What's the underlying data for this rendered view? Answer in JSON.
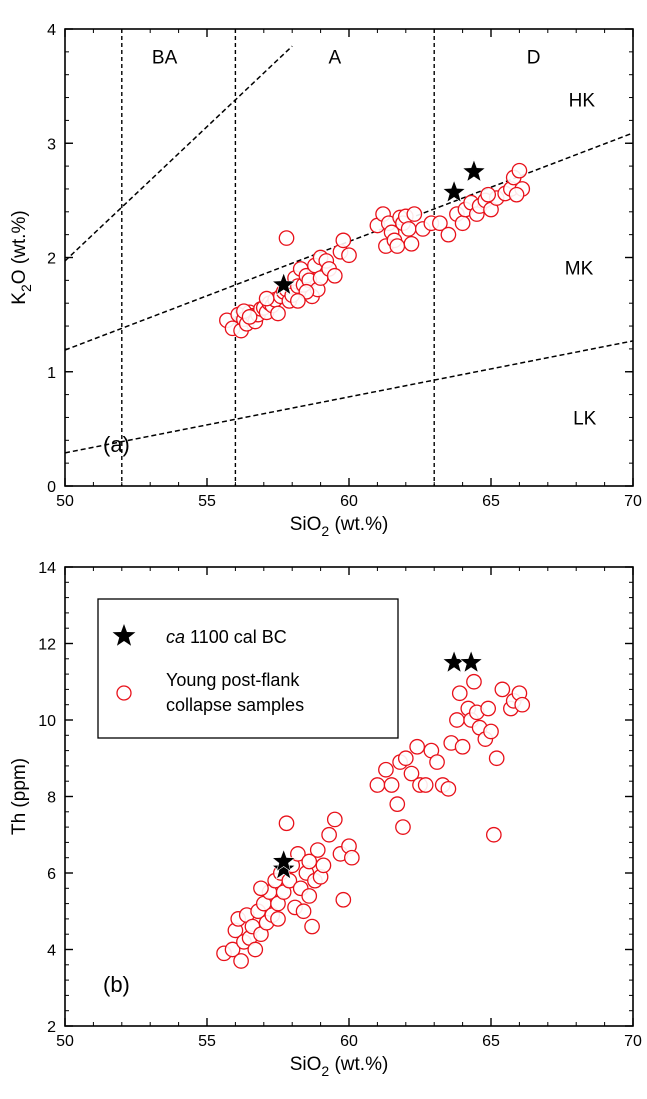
{
  "chart_data": [
    {
      "type": "scatter",
      "panel_label": "(a)",
      "xlabel": {
        "base": "SiO",
        "sub": "2",
        "rest": " (wt.%)"
      },
      "ylabel": {
        "base": "K",
        "sub": "2",
        "rest": "O (wt.%)"
      },
      "xlim": [
        50,
        70
      ],
      "ylim": [
        0,
        4
      ],
      "xticks": [
        "50",
        "55",
        "60",
        "65",
        "70"
      ],
      "yticks": [
        "0",
        "1",
        "2",
        "3",
        "4"
      ],
      "field_labels": {
        "BA": "BA",
        "A": "A",
        "D": "D",
        "HK": "HK",
        "MK": "MK",
        "LK": "LK"
      },
      "boundaries": {
        "vertical_sio2": [
          52,
          56,
          63
        ],
        "hk_mk": [
          [
            50,
            1.97
          ],
          [
            56,
            3.38
          ]
        ],
        "mk": [
          [
            50,
            1.19
          ],
          [
            70,
            3.09
          ]
        ],
        "lk": [
          [
            50,
            0.29
          ],
          [
            70,
            1.27
          ]
        ]
      },
      "series": [
        {
          "legend_ref": 1,
          "marker": "circle",
          "color": "#e8111a",
          "points": [
            [
              55.7,
              1.45
            ],
            [
              55.9,
              1.38
            ],
            [
              56.1,
              1.5
            ],
            [
              56.2,
              1.36
            ],
            [
              56.3,
              1.46
            ],
            [
              56.4,
              1.42
            ],
            [
              56.5,
              1.52
            ],
            [
              56.6,
              1.49
            ],
            [
              56.7,
              1.44
            ],
            [
              56.8,
              1.5
            ],
            [
              56.9,
              1.55
            ],
            [
              57.0,
              1.56
            ],
            [
              57.1,
              1.52
            ],
            [
              57.2,
              1.6
            ],
            [
              57.3,
              1.58
            ],
            [
              57.4,
              1.63
            ],
            [
              57.5,
              1.51
            ],
            [
              57.6,
              1.66
            ],
            [
              57.7,
              1.7
            ],
            [
              57.8,
              2.17
            ],
            [
              57.8,
              1.72
            ],
            [
              57.9,
              1.62
            ],
            [
              58.0,
              1.67
            ],
            [
              58.1,
              1.82
            ],
            [
              58.2,
              1.75
            ],
            [
              58.3,
              1.9
            ],
            [
              58.4,
              1.76
            ],
            [
              58.5,
              1.84
            ],
            [
              58.6,
              1.8
            ],
            [
              58.7,
              1.66
            ],
            [
              58.8,
              1.93
            ],
            [
              58.9,
              1.72
            ],
            [
              59.0,
              1.82
            ],
            [
              59.0,
              2.0
            ],
            [
              59.2,
              1.97
            ],
            [
              59.3,
              1.9
            ],
            [
              59.5,
              1.84
            ],
            [
              59.7,
              2.05
            ],
            [
              59.8,
              2.15
            ],
            [
              60.0,
              2.02
            ],
            [
              56.3,
              1.53
            ],
            [
              56.5,
              1.48
            ],
            [
              57.1,
              1.64
            ],
            [
              58.5,
              1.7
            ],
            [
              58.2,
              1.62
            ],
            [
              61.0,
              2.28
            ],
            [
              61.2,
              2.38
            ],
            [
              61.3,
              2.1
            ],
            [
              61.4,
              2.3
            ],
            [
              61.5,
              2.22
            ],
            [
              61.6,
              2.15
            ],
            [
              61.7,
              2.1
            ],
            [
              61.8,
              2.35
            ],
            [
              61.9,
              2.3
            ],
            [
              62.0,
              2.36
            ],
            [
              62.1,
              2.25
            ],
            [
              62.2,
              2.12
            ],
            [
              62.3,
              2.38
            ],
            [
              62.6,
              2.25
            ],
            [
              62.9,
              2.3
            ],
            [
              63.2,
              2.3
            ],
            [
              63.5,
              2.2
            ],
            [
              63.8,
              2.38
            ],
            [
              64.0,
              2.3
            ],
            [
              64.1,
              2.42
            ],
            [
              64.3,
              2.48
            ],
            [
              64.5,
              2.38
            ],
            [
              64.6,
              2.45
            ],
            [
              64.8,
              2.5
            ],
            [
              65.0,
              2.42
            ],
            [
              65.2,
              2.52
            ],
            [
              65.5,
              2.56
            ],
            [
              65.7,
              2.6
            ],
            [
              65.8,
              2.7
            ],
            [
              66.0,
              2.76
            ],
            [
              66.1,
              2.6
            ],
            [
              65.9,
              2.55
            ],
            [
              64.9,
              2.55
            ]
          ]
        },
        {
          "legend_ref": 0,
          "marker": "star",
          "color": "#000000",
          "points": [
            [
              57.7,
              1.76
            ],
            [
              63.7,
              2.57
            ],
            [
              64.4,
              2.75
            ]
          ]
        }
      ]
    },
    {
      "type": "scatter",
      "panel_label": "(b)",
      "xlabel": {
        "base": "SiO",
        "sub": "2",
        "rest": " (wt.%)"
      },
      "ylabel": {
        "base": "Th (ppm)",
        "sub": "",
        "rest": ""
      },
      "xlim": [
        50,
        70
      ],
      "ylim": [
        2,
        14
      ],
      "xticks": [
        "50",
        "55",
        "60",
        "65",
        "70"
      ],
      "yticks": [
        "2",
        "4",
        "6",
        "8",
        "10",
        "12",
        "14"
      ],
      "legend": {
        "position": "top-left",
        "entries": [
          {
            "prefix_italic": "ca",
            "text": " 1100 cal BC",
            "marker": "star"
          },
          {
            "line1": "Young post-flank",
            "line2": "collapse samples",
            "marker": "circle"
          }
        ]
      },
      "series": [
        {
          "legend_ref": 1,
          "marker": "circle",
          "color": "#e8111a",
          "points": [
            [
              55.6,
              3.9
            ],
            [
              55.9,
              4.0
            ],
            [
              56.0,
              4.5
            ],
            [
              56.1,
              4.8
            ],
            [
              56.2,
              3.7
            ],
            [
              56.3,
              4.2
            ],
            [
              56.4,
              4.9
            ],
            [
              56.5,
              4.3
            ],
            [
              56.6,
              4.6
            ],
            [
              56.7,
              4.0
            ],
            [
              56.8,
              5.0
            ],
            [
              56.9,
              4.4
            ],
            [
              57.0,
              5.2
            ],
            [
              57.1,
              4.7
            ],
            [
              57.2,
              5.5
            ],
            [
              57.3,
              4.9
            ],
            [
              57.4,
              5.8
            ],
            [
              57.5,
              5.2
            ],
            [
              57.6,
              6.0
            ],
            [
              57.7,
              5.5
            ],
            [
              57.8,
              7.3
            ],
            [
              57.9,
              5.8
            ],
            [
              58.0,
              6.2
            ],
            [
              58.1,
              5.1
            ],
            [
              58.2,
              6.5
            ],
            [
              58.3,
              5.6
            ],
            [
              58.4,
              5.0
            ],
            [
              58.5,
              6.0
            ],
            [
              58.6,
              5.4
            ],
            [
              58.7,
              4.6
            ],
            [
              58.8,
              5.8
            ],
            [
              58.9,
              6.6
            ],
            [
              59.0,
              5.9
            ],
            [
              59.1,
              6.2
            ],
            [
              59.3,
              7.0
            ],
            [
              59.5,
              7.4
            ],
            [
              59.7,
              6.5
            ],
            [
              59.8,
              5.3
            ],
            [
              60.0,
              6.7
            ],
            [
              60.1,
              6.4
            ],
            [
              56.9,
              5.6
            ],
            [
              57.5,
              4.8
            ],
            [
              58.6,
              6.3
            ],
            [
              61.0,
              8.3
            ],
            [
              61.3,
              8.7
            ],
            [
              61.5,
              8.3
            ],
            [
              61.7,
              7.8
            ],
            [
              61.8,
              8.9
            ],
            [
              61.9,
              7.2
            ],
            [
              62.0,
              9.0
            ],
            [
              62.2,
              8.6
            ],
            [
              62.4,
              9.3
            ],
            [
              62.5,
              8.3
            ],
            [
              62.7,
              8.3
            ],
            [
              62.9,
              9.2
            ],
            [
              63.1,
              8.9
            ],
            [
              63.3,
              8.3
            ],
            [
              63.5,
              8.2
            ],
            [
              63.6,
              9.4
            ],
            [
              63.8,
              10.0
            ],
            [
              64.0,
              9.3
            ],
            [
              64.2,
              10.3
            ],
            [
              64.3,
              10.0
            ],
            [
              64.4,
              11.0
            ],
            [
              64.5,
              10.2
            ],
            [
              64.6,
              9.8
            ],
            [
              64.8,
              9.5
            ],
            [
              64.9,
              10.3
            ],
            [
              65.0,
              9.7
            ],
            [
              65.1,
              7.0
            ],
            [
              65.2,
              9.0
            ],
            [
              65.4,
              10.8
            ],
            [
              65.7,
              10.3
            ],
            [
              65.8,
              10.5
            ],
            [
              66.0,
              10.7
            ],
            [
              66.1,
              10.4
            ],
            [
              63.9,
              10.7
            ]
          ]
        },
        {
          "legend_ref": 0,
          "marker": "star",
          "color": "#000000",
          "points": [
            [
              57.7,
              6.1
            ],
            [
              57.7,
              6.3
            ],
            [
              63.7,
              11.5
            ],
            [
              64.3,
              11.5
            ]
          ]
        }
      ]
    }
  ]
}
